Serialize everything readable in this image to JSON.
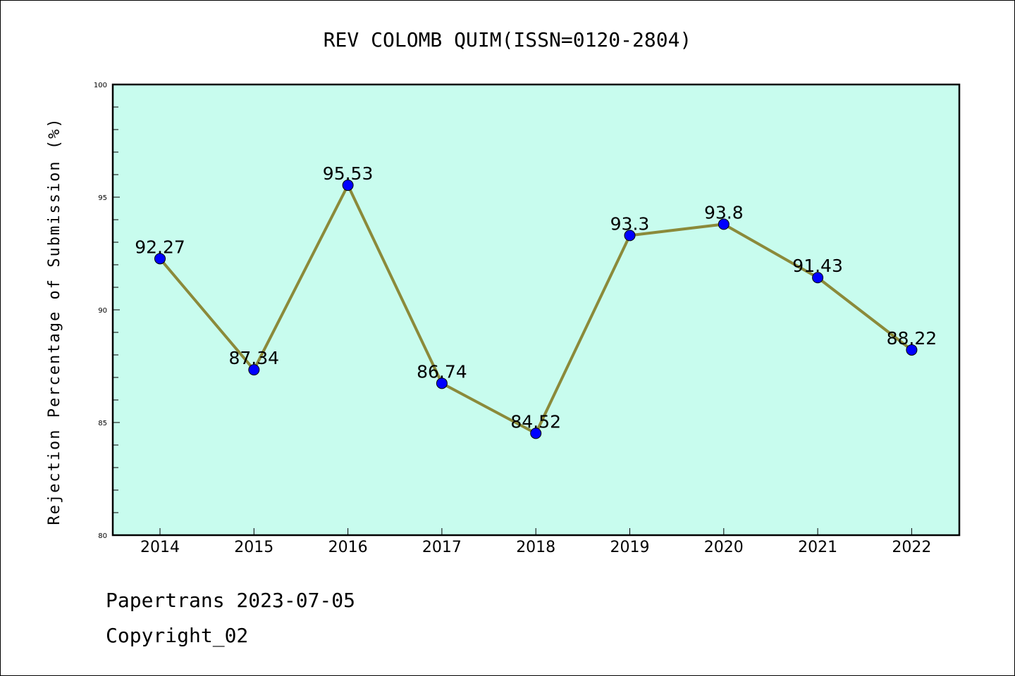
{
  "chart_data": {
    "type": "line",
    "title": "REV COLOMB QUIM(ISSN=0120-2804)",
    "xlabel": "",
    "ylabel": "Rejection Percentage of Submission (%)",
    "categories": [
      "2014",
      "2015",
      "2016",
      "2017",
      "2018",
      "2019",
      "2020",
      "2021",
      "2022"
    ],
    "values": [
      92.27,
      87.34,
      95.53,
      86.74,
      84.52,
      93.3,
      93.8,
      91.43,
      88.22
    ],
    "data_labels": [
      "92.27",
      "87.34",
      "95.53",
      "86.74",
      "84.52",
      "93.3",
      "93.8",
      "91.43",
      "88.22"
    ],
    "ylim": [
      80,
      100
    ],
    "yticks": [
      80,
      85,
      90,
      95,
      100
    ],
    "grid": false,
    "colors": {
      "plot_background": "#c8fcee",
      "line": "#8b8a3a",
      "marker": "#0000ff"
    }
  },
  "footer": {
    "line1": "Papertrans 2023-07-05",
    "line2": "Copyright_02"
  }
}
